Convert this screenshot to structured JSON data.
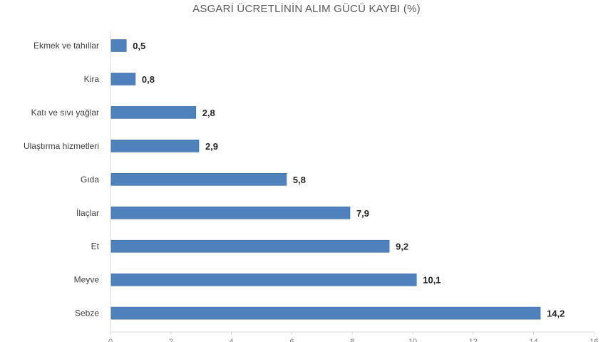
{
  "chart_data": {
    "type": "bar",
    "orientation": "horizontal",
    "title": "ASGARİ ÜCRETLİNİN ALIM GÜCÜ KAYBI (%)",
    "categories": [
      "Ekmek ve tahıllar",
      "Kira",
      "Katı ve sıvı yağlar",
      "Ulaştırma hizmetleri",
      "Gıda",
      "İlaçlar",
      "Et",
      "Meyve",
      "Sebze"
    ],
    "values": [
      0.5,
      0.8,
      2.8,
      2.9,
      5.8,
      7.9,
      9.2,
      10.1,
      14.2
    ],
    "value_labels": [
      "0,5",
      "0,8",
      "2,8",
      "2,9",
      "5,8",
      "7,9",
      "9,2",
      "10,1",
      "14,2"
    ],
    "xlim": [
      0,
      16
    ],
    "x_ticks": [
      0,
      2,
      4,
      6,
      8,
      10,
      12,
      14,
      16
    ],
    "xlabel": "",
    "ylabel": "",
    "grid": false,
    "legend": "none",
    "colors": {
      "bar": "#4f81bd",
      "bar_edge": "#3a6aa6",
      "axis": "#d9d9d9",
      "title": "#595959"
    }
  }
}
